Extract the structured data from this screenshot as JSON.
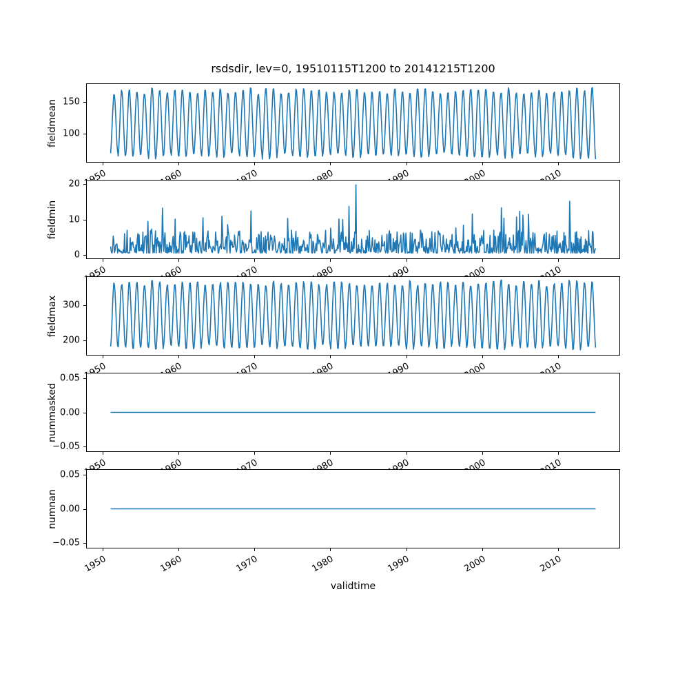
{
  "title": "rsdsdir, lev=0, 19510115T1200 to 20141215T1200",
  "xlabel": "validtime",
  "line_color": "#1f77b4",
  "x_axis": {
    "xlim": [
      1947.9,
      2018.1
    ],
    "tick_values": [
      1950,
      1960,
      1970,
      1980,
      1990,
      2000,
      2010
    ],
    "tick_labels": [
      "1950",
      "1960",
      "1970",
      "1980",
      "1990",
      "2000",
      "2010"
    ]
  },
  "chart_data": [
    {
      "type": "line",
      "ylabel": "fieldmean",
      "ylim": [
        55,
        178
      ],
      "ytick_values": [
        100,
        150
      ],
      "ytick_labels": [
        "100",
        "150"
      ],
      "x_start": 1951.0417,
      "x_end": 2014.9583,
      "points_per_year": 12,
      "series_gen": {
        "kind": "seasonal",
        "base": 116,
        "amplitude": 52,
        "amp_jitter": 5,
        "noise": 2,
        "seed": 7
      }
    },
    {
      "type": "line",
      "ylabel": "fieldmin",
      "ylim": [
        -1.0,
        21.0
      ],
      "ytick_values": [
        0,
        10,
        20
      ],
      "ytick_labels": [
        "0",
        "10",
        "20"
      ],
      "x_start": 1951.0417,
      "x_end": 2014.9583,
      "points_per_year": 12,
      "series_gen": {
        "kind": "spiky",
        "base": 0.5,
        "scale": 6.5,
        "power": 2.2,
        "spike_prob": 0.05,
        "spike_scale": 11,
        "max": 20,
        "seed": 13,
        "ensure_peak": {
          "x": 1983.4,
          "value": 19.8
        }
      }
    },
    {
      "type": "line",
      "ylabel": "fieldmax",
      "ylim": [
        160,
        380
      ],
      "ytick_values": [
        200,
        300
      ],
      "ytick_labels": [
        "200",
        "300"
      ],
      "x_start": 1951.0417,
      "x_end": 2014.9583,
      "points_per_year": 12,
      "series_gen": {
        "kind": "seasonal",
        "base": 272,
        "amplitude": 92,
        "amp_jitter": 8,
        "noise": 4,
        "seed": 21
      }
    },
    {
      "type": "line",
      "ylabel": "nummasked",
      "ylim": [
        -0.057,
        0.057
      ],
      "ytick_values": [
        -0.05,
        0.0,
        0.05
      ],
      "ytick_labels": [
        "−0.05",
        "0.00",
        "0.05"
      ],
      "x_start": 1951.0417,
      "x_end": 2014.9583,
      "points_per_year": 12,
      "series_gen": {
        "kind": "constant",
        "value": 0
      }
    },
    {
      "type": "line",
      "ylabel": "numnan",
      "ylim": [
        -0.057,
        0.057
      ],
      "ytick_values": [
        -0.05,
        0.0,
        0.05
      ],
      "ytick_labels": [
        "−0.05",
        "0.00",
        "0.05"
      ],
      "x_start": 1951.0417,
      "x_end": 2014.9583,
      "points_per_year": 12,
      "series_gen": {
        "kind": "constant",
        "value": 0
      }
    }
  ]
}
